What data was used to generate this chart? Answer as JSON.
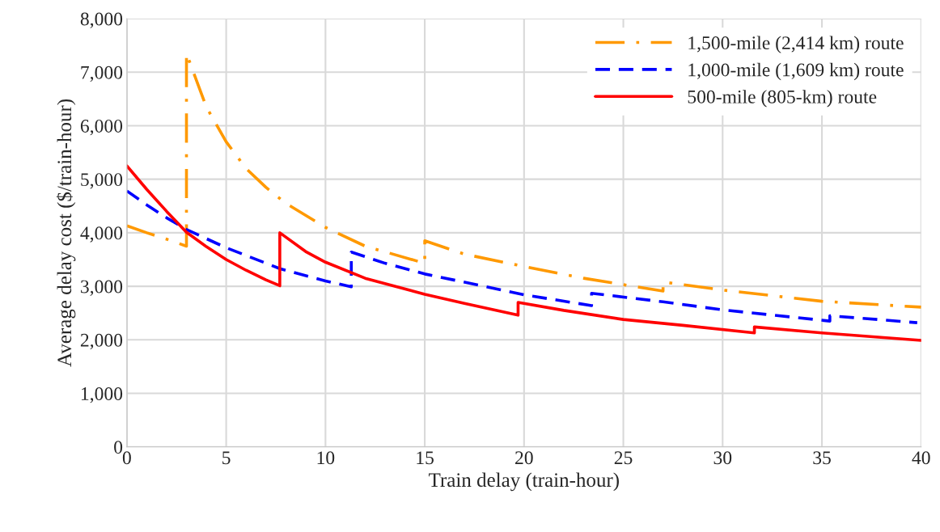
{
  "chart_data": {
    "type": "line",
    "xlabel": "Train delay (train-hour)",
    "ylabel": "Average delay cost ($/train-hour)",
    "xlim": [
      0,
      40
    ],
    "xticks": [
      0,
      5,
      10,
      15,
      20,
      25,
      30,
      35,
      40
    ],
    "ylim": [
      0,
      8000
    ],
    "yticks": [
      {
        "value": 0,
        "label": "0"
      },
      {
        "value": 1000,
        "label": "1,000"
      },
      {
        "value": 2000,
        "label": "2,000"
      },
      {
        "value": 3000,
        "label": "3,000"
      },
      {
        "value": 4000,
        "label": "4,000"
      },
      {
        "value": 5000,
        "label": "5,000"
      },
      {
        "value": 6000,
        "label": "6,000"
      },
      {
        "value": 7000,
        "label": "7,000"
      },
      {
        "value": 8000,
        "label": "8,000"
      }
    ],
    "grid": true,
    "legend": "top right",
    "marker": "none",
    "series": [
      {
        "name": "1,500-mile (2,414 km) route",
        "color": "#ff9900",
        "line_style": "dashdot",
        "x": [
          0,
          1,
          2,
          3,
          3,
          4,
          5,
          6,
          7,
          8,
          10,
          12,
          15,
          15,
          17,
          20,
          23,
          27,
          27,
          30,
          35,
          40
        ],
        "values": [
          4130,
          4000,
          3880,
          3750,
          7350,
          6350,
          5700,
          5200,
          4850,
          4550,
          4100,
          3750,
          3430,
          3850,
          3600,
          3370,
          3150,
          2910,
          3080,
          2930,
          2720,
          2610
        ]
      },
      {
        "name": "1,000-mile (1,609 km) route",
        "color": "#0000ff",
        "line_style": "dashed",
        "x": [
          0,
          1,
          2,
          3,
          5,
          7.7,
          10,
          11.3,
          11.3,
          13,
          15,
          18,
          20,
          23.4,
          23.4,
          27,
          30,
          35.4,
          35.4,
          39.8
        ],
        "values": [
          4780,
          4520,
          4280,
          4060,
          3720,
          3330,
          3100,
          2990,
          3640,
          3430,
          3230,
          3000,
          2840,
          2640,
          2870,
          2710,
          2560,
          2350,
          2450,
          2320
        ]
      },
      {
        "name": "500-mile (805-km) route",
        "color": "#ff0000",
        "line_style": "solid",
        "x": [
          0,
          1,
          2,
          3,
          4,
          5,
          6,
          7,
          7.7,
          7.7,
          9,
          10,
          12,
          15,
          17,
          19.7,
          19.7,
          22,
          25,
          28,
          31.6,
          31.6,
          35,
          40
        ],
        "values": [
          5250,
          4810,
          4400,
          4010,
          3740,
          3500,
          3300,
          3120,
          3010,
          4000,
          3650,
          3450,
          3150,
          2850,
          2680,
          2460,
          2700,
          2550,
          2380,
          2270,
          2130,
          2240,
          2130,
          1990
        ]
      }
    ]
  }
}
